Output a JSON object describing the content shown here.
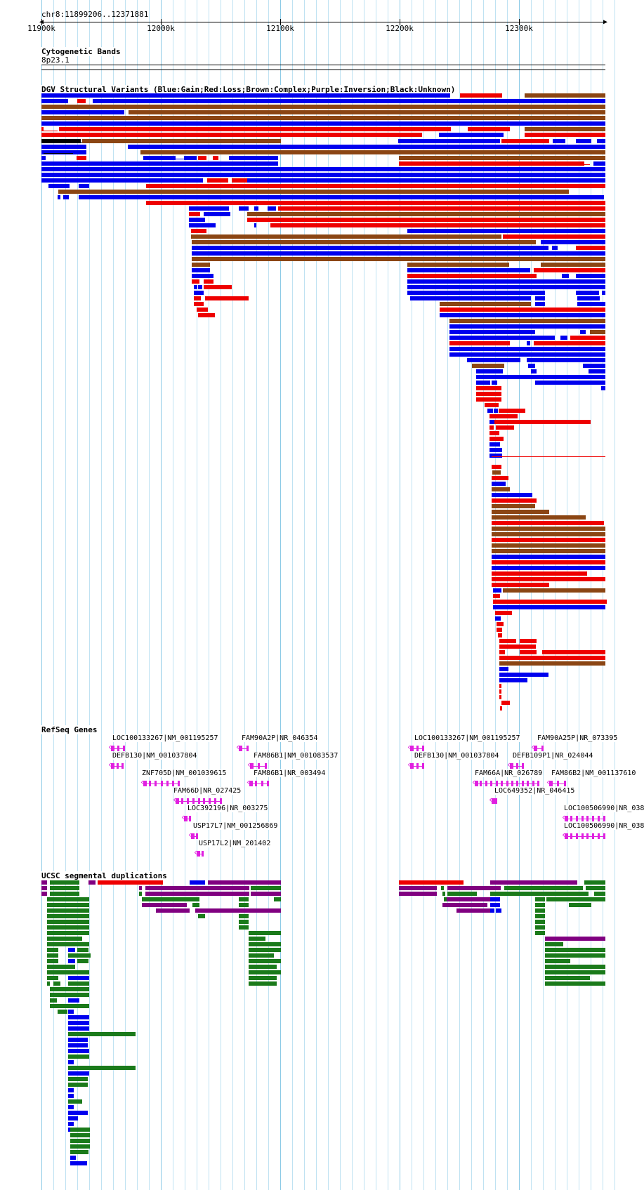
{
  "browser": {
    "position": "chr8:11899206..12371881",
    "ruler_ticks": [
      "11900k",
      "12000k",
      "12100k",
      "12200k",
      "12300k"
    ],
    "colors": {
      "gain": "#0000ee",
      "loss": "#ee0000",
      "complex": "#8b4513",
      "inversion": "#800080",
      "unknown": "#000000",
      "gene": "#e020e0",
      "segdup_green": "#1a7a1a",
      "segdup_blue": "#0000ee",
      "segdup_red": "#ee0000",
      "segdup_purple": "#800080",
      "grid": "#bfe2f2"
    }
  },
  "tracks": {
    "cytobands": {
      "title": "Cytogenetic Bands",
      "band": "8p23.1"
    },
    "dgv": {
      "title": "DGV Structural Variants (Blue:Gain;Red:Loss;Brown:Complex;Purple:Inversion;Black:Unknown)"
    },
    "refseq": {
      "title": "RefSeq Genes",
      "genes": [
        {
          "label": "LOC100133267|NM_001195257"
        },
        {
          "label": "FAM90A2P|NR_046354"
        },
        {
          "label": "DEFB130|NM_001037804"
        },
        {
          "label": "FAM86B1|NM_001083537"
        },
        {
          "label": "ZNF705D|NM_001039615"
        },
        {
          "label": "FAM86B1|NR_003494"
        },
        {
          "label": "FAM66D|NR_027425"
        },
        {
          "label": "LOC392196|NR_003275"
        },
        {
          "label": "USP17L7|NM_001256869"
        },
        {
          "label": "USP17L2|NM_201402"
        },
        {
          "label": "LOC100133267|NM_001195257"
        },
        {
          "label": "FAM90A25P|NR_073395"
        },
        {
          "label": "DEFB130|NM_001037804"
        },
        {
          "label": "DEFB109P1|NR_024044"
        },
        {
          "label": "FAM66A|NR_026789"
        },
        {
          "label": "FAM86B2|NM_001137610"
        },
        {
          "label": "LOC649352|NR_046415"
        },
        {
          "label": "LOC100506990|NR_038"
        },
        {
          "label": "LOC100506990|NR_038"
        }
      ]
    },
    "segdups": {
      "title": "UCSC segmental duplications"
    }
  }
}
